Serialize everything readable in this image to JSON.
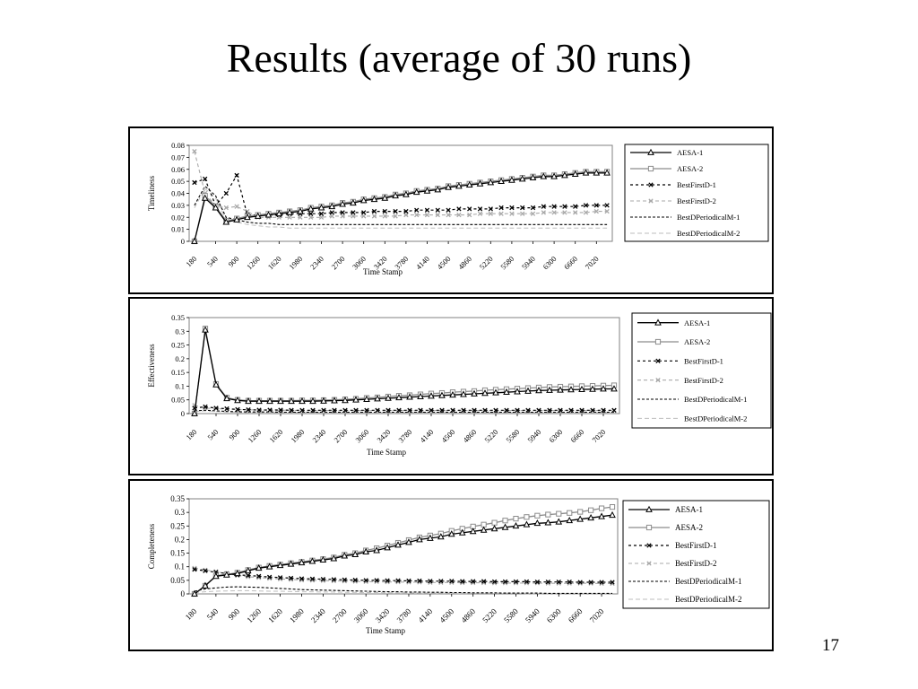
{
  "slide": {
    "title": "Results (average of 30 runs)",
    "page_number": "17"
  },
  "colors": {
    "aesa1": "#000000",
    "aesa2": "#8c8c8c",
    "bfd1": "#000000",
    "bfd2": "#a9a9a9",
    "bdpm1": "#000000",
    "bdpm2": "#bdbdbd"
  },
  "chart_data": [
    {
      "type": "line",
      "ylabel": "Timeliness",
      "xlabel": "Time Stamp",
      "ylim": [
        0,
        0.08
      ],
      "yticks": [
        "0",
        "0.01",
        "0.02",
        "0.03",
        "0.04",
        "0.05",
        "0.06",
        "0.07",
        "0.08"
      ],
      "xticks": [
        "180",
        "540",
        "900",
        "1260",
        "1620",
        "1980",
        "2340",
        "2700",
        "3060",
        "3420",
        "3780",
        "4140",
        "4500",
        "4860",
        "5220",
        "5580",
        "5940",
        "6300",
        "6660",
        "7020"
      ],
      "x": [
        180,
        360,
        540,
        720,
        900,
        1080,
        1260,
        1440,
        1620,
        1800,
        1980,
        2160,
        2340,
        2520,
        2700,
        2880,
        3060,
        3240,
        3420,
        3600,
        3780,
        3960,
        4140,
        4320,
        4500,
        4680,
        4860,
        5040,
        5220,
        5400,
        5580,
        5760,
        5940,
        6120,
        6300,
        6480,
        6660,
        6840,
        7020,
        7200
      ],
      "legend": [
        "AESA-1",
        "AESA-2",
        "BestFirstD-1",
        "BestFirstD-2",
        "BestDPeriodicalM-1",
        "BestDPeriodicalM-2"
      ],
      "series": [
        {
          "name": "AESA-1",
          "values": [
            0.0,
            0.036,
            0.028,
            0.016,
            0.018,
            0.02,
            0.021,
            0.022,
            0.023,
            0.024,
            0.025,
            0.027,
            0.028,
            0.029,
            0.031,
            0.032,
            0.034,
            0.035,
            0.036,
            0.038,
            0.039,
            0.041,
            0.042,
            0.043,
            0.045,
            0.046,
            0.047,
            0.048,
            0.049,
            0.05,
            0.051,
            0.052,
            0.053,
            0.054,
            0.054,
            0.055,
            0.056,
            0.057,
            0.057,
            0.057
          ]
        },
        {
          "name": "AESA-2",
          "values": [
            0.0,
            0.038,
            0.029,
            0.017,
            0.019,
            0.021,
            0.022,
            0.023,
            0.024,
            0.025,
            0.026,
            0.028,
            0.029,
            0.03,
            0.032,
            0.033,
            0.035,
            0.036,
            0.037,
            0.039,
            0.04,
            0.042,
            0.043,
            0.044,
            0.046,
            0.047,
            0.048,
            0.049,
            0.05,
            0.051,
            0.052,
            0.053,
            0.054,
            0.055,
            0.055,
            0.056,
            0.057,
            0.058,
            0.058,
            0.058
          ]
        },
        {
          "name": "BestFirstD-1",
          "values": [
            0.049,
            0.052,
            0.03,
            0.04,
            0.055,
            0.022,
            0.022,
            0.022,
            0.022,
            0.023,
            0.023,
            0.023,
            0.023,
            0.024,
            0.024,
            0.024,
            0.024,
            0.025,
            0.025,
            0.025,
            0.025,
            0.026,
            0.026,
            0.026,
            0.026,
            0.027,
            0.027,
            0.027,
            0.027,
            0.028,
            0.028,
            0.028,
            0.028,
            0.029,
            0.029,
            0.029,
            0.029,
            0.03,
            0.03,
            0.03
          ]
        },
        {
          "name": "BestFirstD-2",
          "values": [
            0.075,
            0.04,
            0.03,
            0.028,
            0.029,
            0.025,
            0.02,
            0.02,
            0.02,
            0.02,
            0.02,
            0.02,
            0.02,
            0.021,
            0.021,
            0.021,
            0.021,
            0.021,
            0.021,
            0.021,
            0.022,
            0.022,
            0.022,
            0.022,
            0.022,
            0.022,
            0.022,
            0.023,
            0.023,
            0.023,
            0.023,
            0.023,
            0.023,
            0.024,
            0.024,
            0.024,
            0.024,
            0.024,
            0.025,
            0.025
          ]
        },
        {
          "name": "BestDPeriodicalM-1",
          "values": [
            0.03,
            0.046,
            0.038,
            0.02,
            0.018,
            0.016,
            0.015,
            0.015,
            0.014,
            0.014,
            0.014,
            0.014,
            0.014,
            0.014,
            0.014,
            0.014,
            0.014,
            0.014,
            0.014,
            0.014,
            0.014,
            0.014,
            0.014,
            0.014,
            0.014,
            0.014,
            0.014,
            0.014,
            0.014,
            0.014,
            0.014,
            0.014,
            0.014,
            0.014,
            0.014,
            0.014,
            0.014,
            0.014,
            0.014,
            0.014
          ]
        },
        {
          "name": "BestDPeriodicalM-2",
          "values": [
            0.028,
            0.044,
            0.036,
            0.018,
            0.016,
            0.014,
            0.013,
            0.012,
            0.012,
            0.011,
            0.011,
            0.011,
            0.011,
            0.011,
            0.011,
            0.011,
            0.011,
            0.011,
            0.011,
            0.011,
            0.011,
            0.011,
            0.011,
            0.011,
            0.011,
            0.011,
            0.011,
            0.011,
            0.011,
            0.011,
            0.011,
            0.011,
            0.011,
            0.011,
            0.011,
            0.011,
            0.011,
            0.011,
            0.011,
            0.011
          ]
        }
      ]
    },
    {
      "type": "line",
      "ylabel": "Effectiveness",
      "xlabel": "Time Stamp",
      "ylim": [
        0,
        0.35
      ],
      "yticks": [
        "0",
        "0.05",
        "0.1",
        "0.15",
        "0.2",
        "0.25",
        "0.3",
        "0.35"
      ],
      "xticks": [
        "180",
        "540",
        "900",
        "1260",
        "1620",
        "1980",
        "2340",
        "2700",
        "3060",
        "3420",
        "3780",
        "4140",
        "4500",
        "4860",
        "5220",
        "5580",
        "5940",
        "6300",
        "6660",
        "7020"
      ],
      "x": [
        180,
        360,
        540,
        720,
        900,
        1080,
        1260,
        1440,
        1620,
        1800,
        1980,
        2160,
        2340,
        2520,
        2700,
        2880,
        3060,
        3240,
        3420,
        3600,
        3780,
        3960,
        4140,
        4320,
        4500,
        4680,
        4860,
        5040,
        5220,
        5400,
        5580,
        5760,
        5940,
        6120,
        6300,
        6480,
        6660,
        6840,
        7020,
        7200
      ],
      "legend": [
        "AESA-1",
        "AESA-2",
        "BestFirstD-1",
        "BestFirstD-2",
        "BestDPeriodicalM-1",
        "BestDPeriodicalM-2"
      ],
      "series": [
        {
          "name": "AESA-1",
          "values": [
            0.0,
            0.305,
            0.105,
            0.055,
            0.048,
            0.045,
            0.045,
            0.045,
            0.045,
            0.045,
            0.045,
            0.045,
            0.046,
            0.047,
            0.048,
            0.05,
            0.052,
            0.054,
            0.056,
            0.058,
            0.06,
            0.062,
            0.064,
            0.066,
            0.068,
            0.07,
            0.072,
            0.074,
            0.076,
            0.078,
            0.08,
            0.082,
            0.084,
            0.085,
            0.086,
            0.087,
            0.088,
            0.089,
            0.09,
            0.09
          ]
        },
        {
          "name": "AESA-2",
          "values": [
            0.0,
            0.31,
            0.108,
            0.058,
            0.05,
            0.047,
            0.047,
            0.047,
            0.047,
            0.047,
            0.048,
            0.048,
            0.049,
            0.05,
            0.052,
            0.054,
            0.057,
            0.059,
            0.062,
            0.065,
            0.067,
            0.07,
            0.073,
            0.075,
            0.078,
            0.08,
            0.082,
            0.085,
            0.087,
            0.089,
            0.091,
            0.093,
            0.095,
            0.097,
            0.098,
            0.099,
            0.1,
            0.101,
            0.102,
            0.103
          ]
        },
        {
          "name": "BestFirstD-1",
          "values": [
            0.02,
            0.025,
            0.02,
            0.018,
            0.015,
            0.014,
            0.013,
            0.013,
            0.013,
            0.012,
            0.012,
            0.012,
            0.012,
            0.012,
            0.012,
            0.012,
            0.012,
            0.012,
            0.012,
            0.012,
            0.012,
            0.012,
            0.012,
            0.012,
            0.012,
            0.012,
            0.012,
            0.012,
            0.012,
            0.012,
            0.012,
            0.012,
            0.012,
            0.012,
            0.012,
            0.012,
            0.012,
            0.012,
            0.012,
            0.012
          ]
        },
        {
          "name": "BestFirstD-2",
          "values": [
            0.03,
            0.02,
            0.018,
            0.016,
            0.015,
            0.014,
            0.013,
            0.012,
            0.012,
            0.012,
            0.011,
            0.011,
            0.011,
            0.011,
            0.011,
            0.011,
            0.011,
            0.011,
            0.011,
            0.011,
            0.011,
            0.011,
            0.011,
            0.011,
            0.011,
            0.011,
            0.011,
            0.011,
            0.011,
            0.011,
            0.011,
            0.011,
            0.011,
            0.011,
            0.011,
            0.011,
            0.011,
            0.011,
            0.011,
            0.011
          ]
        },
        {
          "name": "BestDPeriodicalM-1",
          "values": [
            0.01,
            0.012,
            0.01,
            0.008,
            0.007,
            0.006,
            0.006,
            0.006,
            0.005,
            0.005,
            0.005,
            0.005,
            0.005,
            0.005,
            0.005,
            0.005,
            0.005,
            0.005,
            0.005,
            0.005,
            0.005,
            0.005,
            0.005,
            0.005,
            0.005,
            0.005,
            0.005,
            0.005,
            0.005,
            0.005,
            0.005,
            0.005,
            0.005,
            0.005,
            0.005,
            0.005,
            0.005,
            0.005,
            0.005,
            0.005
          ]
        },
        {
          "name": "BestDPeriodicalM-2",
          "values": [
            0.008,
            0.01,
            0.008,
            0.006,
            0.005,
            0.004,
            0.004,
            0.004,
            0.004,
            0.004,
            0.004,
            0.004,
            0.004,
            0.004,
            0.004,
            0.004,
            0.004,
            0.004,
            0.004,
            0.004,
            0.004,
            0.004,
            0.004,
            0.004,
            0.004,
            0.004,
            0.004,
            0.004,
            0.004,
            0.004,
            0.004,
            0.004,
            0.004,
            0.004,
            0.004,
            0.004,
            0.004,
            0.004,
            0.004,
            0.004
          ]
        }
      ]
    },
    {
      "type": "line",
      "ylabel": "Completeness",
      "xlabel": "Time Stamp",
      "ylim": [
        0,
        0.35
      ],
      "yticks": [
        "0",
        "0.05",
        "0.1",
        "0.15",
        "0.2",
        "0.25",
        "0.3",
        "0.35"
      ],
      "xticks": [
        "180",
        "540",
        "900",
        "1260",
        "1620",
        "1980",
        "2340",
        "2700",
        "3060",
        "3420",
        "3780",
        "4140",
        "4500",
        "4860",
        "5220",
        "5580",
        "5940",
        "6300",
        "6660",
        "7020"
      ],
      "x": [
        180,
        360,
        540,
        720,
        900,
        1080,
        1260,
        1440,
        1620,
        1800,
        1980,
        2160,
        2340,
        2520,
        2700,
        2880,
        3060,
        3240,
        3420,
        3600,
        3780,
        3960,
        4140,
        4320,
        4500,
        4680,
        4860,
        5040,
        5220,
        5400,
        5580,
        5760,
        5940,
        6120,
        6300,
        6480,
        6660,
        6840,
        7020,
        7200
      ],
      "legend": [
        "AESA-1",
        "AESA-2",
        "BestFirstD-1",
        "BestFirstD-2",
        "BestDPeriodicalM-1",
        "BestDPeriodicalM-2"
      ],
      "series": [
        {
          "name": "AESA-1",
          "values": [
            0.0,
            0.03,
            0.065,
            0.07,
            0.075,
            0.085,
            0.095,
            0.1,
            0.105,
            0.11,
            0.115,
            0.12,
            0.125,
            0.13,
            0.14,
            0.145,
            0.155,
            0.16,
            0.17,
            0.18,
            0.19,
            0.2,
            0.205,
            0.21,
            0.22,
            0.225,
            0.23,
            0.235,
            0.24,
            0.245,
            0.25,
            0.255,
            0.26,
            0.262,
            0.265,
            0.27,
            0.275,
            0.28,
            0.285,
            0.29
          ]
        },
        {
          "name": "AESA-2",
          "values": [
            0.0,
            0.03,
            0.067,
            0.072,
            0.078,
            0.088,
            0.097,
            0.103,
            0.108,
            0.113,
            0.118,
            0.123,
            0.128,
            0.134,
            0.144,
            0.15,
            0.16,
            0.168,
            0.178,
            0.188,
            0.198,
            0.208,
            0.215,
            0.222,
            0.232,
            0.24,
            0.248,
            0.255,
            0.262,
            0.27,
            0.277,
            0.283,
            0.288,
            0.292,
            0.295,
            0.298,
            0.302,
            0.308,
            0.315,
            0.32
          ]
        },
        {
          "name": "BestFirstD-1",
          "values": [
            0.09,
            0.085,
            0.08,
            0.075,
            0.07,
            0.068,
            0.065,
            0.062,
            0.06,
            0.058,
            0.056,
            0.055,
            0.054,
            0.053,
            0.052,
            0.051,
            0.05,
            0.05,
            0.049,
            0.049,
            0.048,
            0.048,
            0.047,
            0.047,
            0.047,
            0.046,
            0.046,
            0.046,
            0.045,
            0.045,
            0.045,
            0.045,
            0.044,
            0.044,
            0.044,
            0.044,
            0.043,
            0.043,
            0.043,
            0.043
          ]
        },
        {
          "name": "BestFirstD-2",
          "values": [
            0.095,
            0.088,
            0.082,
            0.075,
            0.068,
            0.063,
            0.06,
            0.057,
            0.055,
            0.053,
            0.051,
            0.05,
            0.049,
            0.048,
            0.047,
            0.046,
            0.045,
            0.045,
            0.044,
            0.044,
            0.043,
            0.043,
            0.042,
            0.042,
            0.042,
            0.041,
            0.041,
            0.041,
            0.04,
            0.04,
            0.04,
            0.04,
            0.04,
            0.039,
            0.039,
            0.039,
            0.039,
            0.039,
            0.038,
            0.038
          ]
        },
        {
          "name": "BestDPeriodicalM-1",
          "values": [
            0.01,
            0.018,
            0.022,
            0.025,
            0.026,
            0.025,
            0.024,
            0.022,
            0.02,
            0.018,
            0.016,
            0.015,
            0.014,
            0.013,
            0.012,
            0.011,
            0.01,
            0.009,
            0.008,
            0.008,
            0.007,
            0.007,
            0.006,
            0.006,
            0.005,
            0.005,
            0.004,
            0.004,
            0.004,
            0.003,
            0.003,
            0.003,
            0.003,
            0.002,
            0.002,
            0.002,
            0.002,
            0.002,
            0.002,
            0.002
          ]
        },
        {
          "name": "BestDPeriodicalM-2",
          "values": [
            0.005,
            0.008,
            0.01,
            0.011,
            0.012,
            0.012,
            0.011,
            0.01,
            0.01,
            0.009,
            0.008,
            0.008,
            0.007,
            0.007,
            0.006,
            0.006,
            0.005,
            0.005,
            0.004,
            0.004,
            0.004,
            0.003,
            0.003,
            0.003,
            0.003,
            0.002,
            0.002,
            0.002,
            0.002,
            0.002,
            0.002,
            0.001,
            0.001,
            0.001,
            0.001,
            0.001,
            0.001,
            0.001,
            0.001,
            0.001
          ]
        }
      ]
    }
  ]
}
